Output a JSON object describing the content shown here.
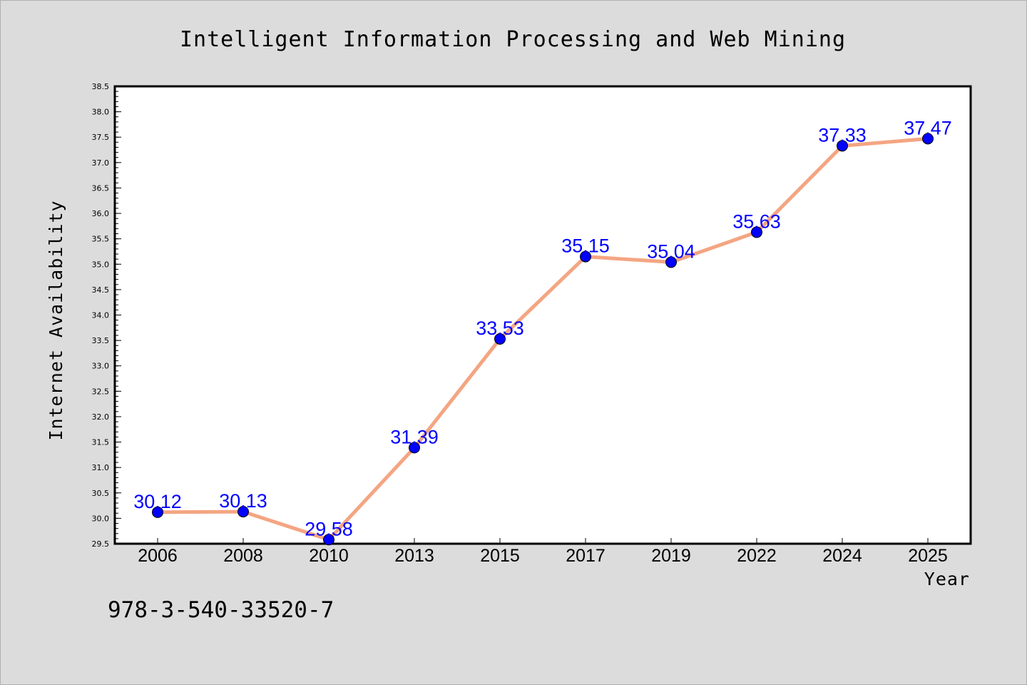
{
  "chart_data": {
    "type": "line",
    "title": "Intelligent Information Processing and Web Mining",
    "xlabel": "Year",
    "ylabel": "Internet Availability",
    "categories": [
      "2006",
      "2008",
      "2010",
      "2013",
      "2015",
      "2017",
      "2019",
      "2022",
      "2024",
      "2025"
    ],
    "series": [
      {
        "values": [
          30.12,
          30.13,
          29.58,
          31.39,
          33.53,
          35.15,
          35.04,
          35.63,
          37.33,
          37.47
        ],
        "data_labels": [
          "30.12",
          "30.13",
          "29.58",
          "31.39",
          "33.53",
          "35.15",
          "35.04",
          "35.63",
          "37.33",
          "37.47"
        ]
      }
    ],
    "ylim": [
      29.5,
      38.5
    ],
    "yticks": [
      "29.5",
      "30.0",
      "30.5",
      "31.0",
      "31.5",
      "32.0",
      "32.5",
      "33.0",
      "33.5",
      "34.0",
      "34.5",
      "35.0",
      "35.5",
      "36.0",
      "36.5",
      "37.0",
      "37.5",
      "38.0",
      "38.5"
    ],
    "grid": false,
    "legend": "none",
    "colors": {
      "line": "#f4a582",
      "marker": "#0000ff",
      "data_label": "#0000ff",
      "background": "#dcdcdc",
      "plot_background": "#ffffff"
    }
  },
  "footer": {
    "isbn": "978-3-540-33520-7"
  }
}
